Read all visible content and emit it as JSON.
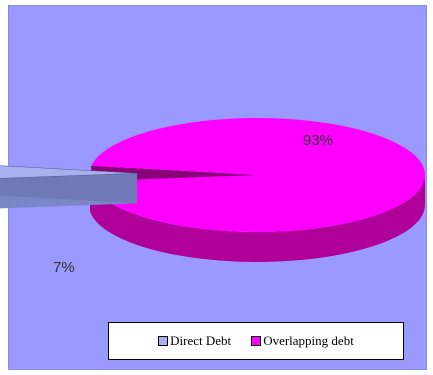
{
  "chart_data": {
    "type": "pie",
    "style": "3d-exploded",
    "categories": [
      "Direct Debt",
      "Overlapping debt"
    ],
    "values": [
      7,
      93
    ],
    "data_labels": [
      "7%",
      "93%"
    ],
    "colors": {
      "Direct Debt": "#a6b0ee",
      "Overlapping debt": "#ff00ff"
    },
    "side_colors": {
      "Direct Debt": "#7b86c8",
      "Overlapping debt": "#b0009a"
    },
    "background_color": "#9999ff",
    "legend_position": "bottom",
    "title": "",
    "xlabel": "",
    "ylabel": ""
  }
}
